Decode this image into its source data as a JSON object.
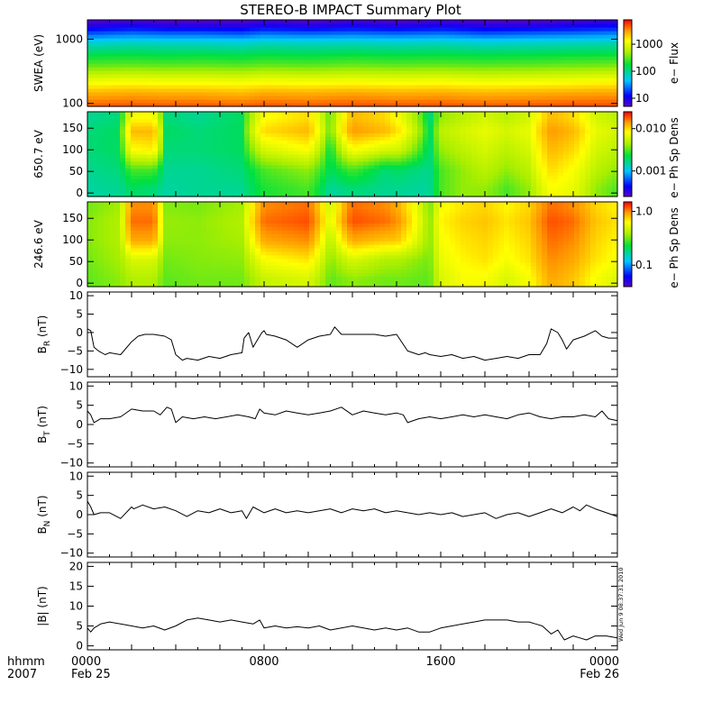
{
  "title": "STEREO-B IMPACT Summary Plot",
  "colors": {
    "background": "#ffffff",
    "axes": "#000000",
    "trace": "#000000"
  },
  "time_axis": {
    "row_label_1": "hhmm",
    "row_label_2": "2007",
    "hours_range": [
      0,
      24
    ],
    "ticks": [
      {
        "hour": 0,
        "label": "0000",
        "sublabel": "Feb 25"
      },
      {
        "hour": 8,
        "label": "0800",
        "sublabel": ""
      },
      {
        "hour": 16,
        "label": "1600",
        "sublabel": ""
      },
      {
        "hour": 24,
        "label": "0000",
        "sublabel": "Feb 26"
      }
    ]
  },
  "timestamp": "Wed Jun  9 08:37:31 2010",
  "chart_data": [
    {
      "id": "swea",
      "type": "heatmap",
      "ylabel": "SWEA (eV)",
      "y_scale": "log",
      "ylim": [
        90,
        2000
      ],
      "yticks": [
        {
          "v": 100,
          "label": "100"
        },
        {
          "v": 1000,
          "label": "1000"
        }
      ],
      "colorbar": {
        "label": "e− Flux",
        "scale": "log",
        "range": [
          5,
          8000
        ],
        "ticks": [
          {
            "v": 10,
            "label": "10"
          },
          {
            "v": 100,
            "label": "100"
          },
          {
            "v": 1000,
            "label": "1000"
          }
        ]
      },
      "energy_levels_ev": [
        95,
        150,
        250,
        400,
        600,
        900,
        1300,
        1800
      ],
      "column_hours": [
        0,
        2,
        3.5,
        5,
        7,
        8,
        10,
        12,
        14,
        16,
        18,
        20,
        22,
        24
      ],
      "values": [
        [
          4500,
          4800,
          4600,
          4700,
          4400,
          4800,
          4600,
          4900,
          4700,
          4800,
          4500,
          4700,
          4900,
          5000
        ],
        [
          2500,
          2700,
          2600,
          2600,
          2400,
          2700,
          2600,
          2800,
          2600,
          2700,
          2500,
          2600,
          2800,
          2900
        ],
        [
          900,
          1000,
          950,
          950,
          900,
          1000,
          950,
          1000,
          950,
          1000,
          900,
          950,
          1000,
          1100
        ],
        [
          300,
          320,
          300,
          310,
          290,
          320,
          300,
          330,
          310,
          320,
          300,
          310,
          330,
          350
        ],
        [
          150,
          160,
          150,
          155,
          145,
          160,
          150,
          165,
          155,
          160,
          150,
          155,
          165,
          170
        ],
        [
          60,
          70,
          65,
          65,
          60,
          70,
          65,
          70,
          65,
          70,
          60,
          65,
          70,
          75
        ],
        [
          18,
          22,
          20,
          20,
          18,
          22,
          20,
          22,
          20,
          22,
          18,
          20,
          22,
          25
        ],
        [
          6,
          7,
          6,
          6,
          6,
          7,
          6,
          7,
          6,
          7,
          6,
          6,
          7,
          8
        ]
      ]
    },
    {
      "id": "pad650",
      "type": "heatmap",
      "ylabel": "650.7 eV",
      "y_scale": "linear",
      "ylim": [
        -8,
        188
      ],
      "yticks": [
        {
          "v": 0,
          "label": "0"
        },
        {
          "v": 50,
          "label": "50"
        },
        {
          "v": 100,
          "label": "100"
        },
        {
          "v": 150,
          "label": "150"
        }
      ],
      "colorbar": {
        "label": "e− Ph Sp Dens",
        "scale": "log",
        "range": [
          0.00025,
          0.025
        ],
        "ticks": [
          {
            "v": 0.001,
            "label": "0.001"
          },
          {
            "v": 0.01,
            "label": "0.010"
          }
        ]
      },
      "pitch_angles": [
        10,
        55,
        100,
        145,
        175
      ],
      "column_hours": [
        0,
        1.5,
        2,
        3,
        3.5,
        5,
        7,
        8,
        10,
        11,
        12,
        13.5,
        14,
        15.5,
        16,
        17,
        18,
        19,
        20,
        21,
        22,
        23,
        24
      ],
      "values": [
        [
          0.0015,
          0.0016,
          0.002,
          0.0018,
          0.0015,
          0.0016,
          0.0016,
          0.0025,
          0.003,
          0.0015,
          0.0018,
          0.0016,
          0.0016,
          0.0015,
          0.003,
          0.004,
          0.004,
          0.003,
          0.004,
          0.008,
          0.007,
          0.004,
          0.003
        ],
        [
          0.0016,
          0.0018,
          0.003,
          0.003,
          0.0016,
          0.0016,
          0.0018,
          0.003,
          0.004,
          0.002,
          0.003,
          0.0018,
          0.002,
          0.0016,
          0.003,
          0.004,
          0.005,
          0.004,
          0.005,
          0.01,
          0.008,
          0.005,
          0.004
        ],
        [
          0.0018,
          0.002,
          0.008,
          0.009,
          0.0018,
          0.0018,
          0.002,
          0.006,
          0.008,
          0.002,
          0.008,
          0.006,
          0.006,
          0.0017,
          0.004,
          0.005,
          0.006,
          0.005,
          0.006,
          0.012,
          0.01,
          0.006,
          0.005
        ],
        [
          0.0018,
          0.002,
          0.012,
          0.012,
          0.002,
          0.0018,
          0.002,
          0.01,
          0.012,
          0.003,
          0.014,
          0.012,
          0.01,
          0.0018,
          0.005,
          0.006,
          0.007,
          0.006,
          0.007,
          0.014,
          0.012,
          0.007,
          0.006
        ],
        [
          0.0016,
          0.0018,
          0.008,
          0.008,
          0.0018,
          0.0016,
          0.002,
          0.008,
          0.01,
          0.003,
          0.012,
          0.01,
          0.008,
          0.0016,
          0.004,
          0.005,
          0.006,
          0.005,
          0.006,
          0.012,
          0.01,
          0.006,
          0.005
        ]
      ]
    },
    {
      "id": "pad246",
      "type": "heatmap",
      "ylabel": "246.6 eV",
      "y_scale": "linear",
      "ylim": [
        -8,
        188
      ],
      "yticks": [
        {
          "v": 0,
          "label": "0"
        },
        {
          "v": 50,
          "label": "50"
        },
        {
          "v": 100,
          "label": "100"
        },
        {
          "v": 150,
          "label": "150"
        }
      ],
      "colorbar": {
        "label": "e− Ph Sp Dens",
        "scale": "log",
        "range": [
          0.04,
          1.5
        ],
        "ticks": [
          {
            "v": 0.1,
            "label": "0.1"
          },
          {
            "v": 1,
            "label": "1.0"
          }
        ]
      },
      "pitch_angles": [
        10,
        55,
        100,
        145,
        175
      ],
      "column_hours": [
        0,
        1.5,
        2,
        3,
        3.5,
        5,
        7,
        8,
        10,
        11,
        12,
        13.5,
        14,
        15.5,
        16,
        17,
        18,
        19,
        20,
        21,
        22,
        23,
        24
      ],
      "values": [
        [
          0.3,
          0.35,
          0.4,
          0.4,
          0.3,
          0.32,
          0.32,
          0.45,
          0.5,
          0.3,
          0.35,
          0.32,
          0.32,
          0.3,
          0.5,
          0.6,
          0.6,
          0.5,
          0.6,
          0.9,
          0.8,
          0.6,
          0.5
        ],
        [
          0.32,
          0.38,
          0.5,
          0.5,
          0.32,
          0.34,
          0.35,
          0.6,
          0.7,
          0.34,
          0.5,
          0.4,
          0.4,
          0.32,
          0.55,
          0.65,
          0.7,
          0.6,
          0.7,
          1.0,
          0.9,
          0.7,
          0.6
        ],
        [
          0.34,
          0.4,
          0.9,
          0.9,
          0.35,
          0.35,
          0.38,
          0.9,
          1.0,
          0.4,
          0.9,
          0.8,
          0.8,
          0.34,
          0.6,
          0.7,
          0.75,
          0.65,
          0.75,
          1.1,
          1.0,
          0.75,
          0.65
        ],
        [
          0.34,
          0.4,
          1.1,
          1.1,
          0.36,
          0.35,
          0.4,
          1.1,
          1.2,
          0.5,
          1.2,
          1.1,
          1.0,
          0.34,
          0.65,
          0.75,
          0.8,
          0.7,
          0.8,
          1.2,
          1.1,
          0.8,
          0.7
        ],
        [
          0.32,
          0.38,
          1.0,
          1.0,
          0.34,
          0.33,
          0.38,
          1.0,
          1.1,
          0.45,
          1.1,
          1.0,
          0.9,
          0.32,
          0.6,
          0.7,
          0.75,
          0.65,
          0.75,
          1.1,
          1.0,
          0.75,
          0.65
        ]
      ]
    },
    {
      "id": "br",
      "type": "line",
      "ylabel": "B",
      "ylabel_sub": "R",
      "ylabel_suffix": " (nT)",
      "ylim": [
        -12,
        11
      ],
      "yticks": [
        {
          "v": -10,
          "label": "−10"
        },
        {
          "v": -5,
          "label": "−5"
        },
        {
          "v": 0,
          "label": "0"
        },
        {
          "v": 5,
          "label": "5"
        },
        {
          "v": 10,
          "label": "10"
        }
      ],
      "x": [
        0,
        0.15,
        0.3,
        0.5,
        0.8,
        1.0,
        1.5,
        2.0,
        2.3,
        2.6,
        3.0,
        3.5,
        3.8,
        4.0,
        4.3,
        4.5,
        5.0,
        5.5,
        6.0,
        6.5,
        7.0,
        7.1,
        7.3,
        7.5,
        7.7,
        7.9,
        8.0,
        8.1,
        8.5,
        9.0,
        9.5,
        10.0,
        10.5,
        11.0,
        11.2,
        11.5,
        11.6,
        12.0,
        12.5,
        13.0,
        13.5,
        14.0,
        14.5,
        15.0,
        15.3,
        15.5,
        16.0,
        16.5,
        17.0,
        17.5,
        18.0,
        18.5,
        19.0,
        19.5,
        20.0,
        20.5,
        20.8,
        21.0,
        21.3,
        21.5,
        21.7,
        22.0,
        22.5,
        23.0,
        23.3,
        23.6,
        24.0
      ],
      "y": [
        1,
        0.5,
        -4,
        -5,
        -6,
        -5.5,
        -6,
        -2.5,
        -1,
        -0.5,
        -0.5,
        -1,
        -2,
        -6,
        -7.5,
        -7,
        -7.5,
        -6.5,
        -7,
        -6,
        -5.5,
        -1.5,
        0,
        -4,
        -2,
        0,
        0.5,
        -0.5,
        -1,
        -2,
        -4,
        -2,
        -1,
        -0.5,
        1.5,
        -0.5,
        -0.5,
        -0.5,
        -0.5,
        -0.5,
        -1,
        -0.5,
        -5,
        -6,
        -5.5,
        -6,
        -6.5,
        -6,
        -7,
        -6.5,
        -7.5,
        -7,
        -6.5,
        -7,
        -6,
        -6,
        -3,
        1,
        0,
        -2,
        -4.5,
        -2,
        -1,
        0.5,
        -1,
        -1.5,
        -1.5
      ]
    },
    {
      "id": "bt",
      "type": "line",
      "ylabel": "B",
      "ylabel_sub": "T",
      "ylabel_suffix": " (nT)",
      "ylim": [
        -11,
        11
      ],
      "yticks": [
        {
          "v": -10,
          "label": "−10"
        },
        {
          "v": -5,
          "label": "−5"
        },
        {
          "v": 0,
          "label": "0"
        },
        {
          "v": 5,
          "label": "5"
        },
        {
          "v": 10,
          "label": "10"
        }
      ],
      "x": [
        0,
        0.15,
        0.3,
        0.6,
        1.0,
        1.5,
        2.0,
        2.5,
        3.0,
        3.3,
        3.6,
        3.8,
        4.0,
        4.3,
        4.8,
        5.3,
        5.8,
        6.3,
        6.8,
        7.3,
        7.6,
        7.8,
        8.0,
        8.5,
        9.0,
        9.5,
        10.0,
        10.5,
        11.0,
        11.5,
        12.0,
        12.5,
        13.0,
        13.5,
        14.0,
        14.3,
        14.5,
        15.0,
        15.5,
        16.0,
        16.5,
        17.0,
        17.5,
        18.0,
        18.5,
        19.0,
        19.5,
        20.0,
        20.5,
        21.0,
        21.5,
        22.0,
        22.5,
        23.0,
        23.3,
        23.6,
        24.0
      ],
      "y": [
        3.5,
        2.5,
        0.5,
        1.5,
        1.5,
        2,
        4,
        3.5,
        3.5,
        2.5,
        4.5,
        4,
        0.5,
        2,
        1.5,
        2,
        1.5,
        2,
        2.5,
        2,
        1.5,
        4,
        3,
        2.5,
        3.5,
        3,
        2.5,
        3,
        3.5,
        4.5,
        2.5,
        3.5,
        3,
        2.5,
        3,
        2.5,
        0.5,
        1.5,
        2,
        1.5,
        2,
        2.5,
        2,
        2.5,
        2,
        1.5,
        2.5,
        3,
        2,
        1.5,
        2,
        2,
        2.5,
        2,
        3.5,
        1.5,
        1
      ]
    },
    {
      "id": "bn",
      "type": "line",
      "ylabel": "B",
      "ylabel_sub": "N",
      "ylabel_suffix": " (nT)",
      "ylim": [
        -11,
        11
      ],
      "yticks": [
        {
          "v": -10,
          "label": "−10"
        },
        {
          "v": -5,
          "label": "−5"
        },
        {
          "v": 0,
          "label": "0"
        },
        {
          "v": 5,
          "label": "5"
        },
        {
          "v": 10,
          "label": "10"
        }
      ],
      "x": [
        0,
        0.15,
        0.3,
        0.6,
        1.0,
        1.5,
        2.0,
        2.1,
        2.5,
        3.0,
        3.5,
        4.0,
        4.5,
        5.0,
        5.5,
        6.0,
        6.5,
        7.0,
        7.2,
        7.5,
        8.0,
        8.5,
        9.0,
        9.5,
        10.0,
        10.5,
        11.0,
        11.5,
        12.0,
        12.5,
        13.0,
        13.5,
        14.0,
        14.5,
        15.0,
        15.5,
        16.0,
        16.5,
        17.0,
        17.5,
        18.0,
        18.5,
        19.0,
        19.5,
        20.0,
        20.5,
        21.0,
        21.5,
        22.0,
        22.3,
        22.6,
        23.0,
        23.5,
        24.0
      ],
      "y": [
        3.5,
        2,
        0,
        0.5,
        0.5,
        -1,
        2,
        1.5,
        2.5,
        1.5,
        2,
        1,
        -0.5,
        1,
        0.5,
        1.5,
        0.5,
        1,
        -1,
        2,
        0.5,
        1.5,
        0.5,
        1,
        0.5,
        1,
        1.5,
        0.5,
        1.5,
        1,
        1.5,
        0.5,
        1,
        0.5,
        0,
        0.5,
        0,
        0.5,
        -0.5,
        0,
        0.5,
        -1,
        0,
        0.5,
        -0.5,
        0.5,
        1.5,
        0.5,
        2,
        1,
        2.5,
        1.5,
        0.5,
        -0.5
      ]
    },
    {
      "id": "bmag",
      "type": "line",
      "ylabel": "|B|",
      "ylabel_sub": "",
      "ylabel_suffix": " (nT)",
      "ylim": [
        -1,
        21
      ],
      "yticks": [
        {
          "v": 0,
          "label": "0"
        },
        {
          "v": 5,
          "label": "5"
        },
        {
          "v": 10,
          "label": "10"
        },
        {
          "v": 15,
          "label": "15"
        },
        {
          "v": 20,
          "label": "20"
        }
      ],
      "x": [
        0,
        0.15,
        0.3,
        0.6,
        1.0,
        1.5,
        2.0,
        2.5,
        3.0,
        3.5,
        4.0,
        4.5,
        5.0,
        5.5,
        6.0,
        6.5,
        7.0,
        7.5,
        7.8,
        8.0,
        8.5,
        9.0,
        9.5,
        10.0,
        10.5,
        11.0,
        11.5,
        12.0,
        12.5,
        13.0,
        13.5,
        14.0,
        14.5,
        15.0,
        15.5,
        16.0,
        16.5,
        17.0,
        17.5,
        18.0,
        18.5,
        19.0,
        19.5,
        20.0,
        20.3,
        20.6,
        21.0,
        21.3,
        21.6,
        22.0,
        22.3,
        22.6,
        23.0,
        23.5,
        24.0
      ],
      "y": [
        4.5,
        3.5,
        4.5,
        5.5,
        6,
        5.5,
        5,
        4.5,
        5,
        4,
        5,
        6.5,
        7,
        6.5,
        6,
        6.5,
        6,
        5.5,
        6.5,
        4.5,
        5,
        4.5,
        4.8,
        4.5,
        5,
        4,
        4.5,
        5,
        4.5,
        4,
        4.5,
        4,
        4.5,
        3.5,
        3.5,
        4.5,
        5,
        5.5,
        6,
        6.5,
        6.5,
        6.5,
        6,
        6,
        5.5,
        5,
        3,
        4,
        1.5,
        2.5,
        2,
        1.5,
        2.5,
        2.5,
        2
      ]
    }
  ]
}
